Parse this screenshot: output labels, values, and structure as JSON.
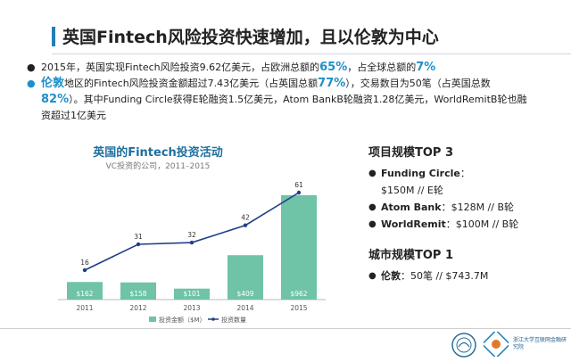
{
  "slide": {
    "title": "英国Fintech风险投资快速增加，且以伦敦为中心",
    "accent_color": "#1f8fc9"
  },
  "bullets": [
    {
      "pre": "2015年，英国实现Fintech风险投资9.62亿美元，占欧洲总额的",
      "hl1": "65%",
      "mid": "，占全球总额的",
      "hl2": "7%"
    },
    {
      "line1_hl": "伦敦",
      "line1": "地区的Fintech风险投资金额超过7.43亿美元（占英国总额",
      "line1_hl2": "77%",
      "line1_end": "），交易数目为50笔（占英国总数",
      "line2_hl": "82%",
      "line2": "）。其中Funding Circle获得E轮融资1.5亿美元，Atom BankB轮融资1.28亿美元，WorldRemitB轮也融",
      "line3": "资超过1亿美元"
    }
  ],
  "chart_data": {
    "type": "bar",
    "title": "英国的Fintech投资活动",
    "subtitle": "VC投资的公司，2011–2015",
    "categories": [
      "2011",
      "2012",
      "2013",
      "2014",
      "2015"
    ],
    "series": [
      {
        "name": "投资金额（$M）",
        "type": "bar",
        "values": [
          162,
          158,
          101,
          409,
          962
        ],
        "labels": [
          "$162",
          "$158",
          "$101",
          "$409",
          "$962"
        ],
        "color": "#6fc3a6"
      },
      {
        "name": "投资数量",
        "type": "line",
        "values": [
          16,
          31,
          32,
          42,
          61
        ],
        "color": "#1f3f8a"
      }
    ]
  },
  "right_panel": {
    "top3_title": "项目规模TOP 3",
    "items": [
      {
        "name": "Funding Circle",
        "sep": "：",
        "value": "$150M // E轮"
      },
      {
        "name": "Atom Bank",
        "sep": "：",
        "value": "$128M // B轮"
      },
      {
        "name": "WorldRemit",
        "sep": "：",
        "value": "$100M // B轮"
      }
    ],
    "city_title": "城市规模TOP 1",
    "city": {
      "name": "伦敦",
      "sep": "：",
      "value": "50笔 // $743.7M"
    }
  },
  "footer": {
    "logo_text": "浙江大学互联网金融研究院"
  }
}
